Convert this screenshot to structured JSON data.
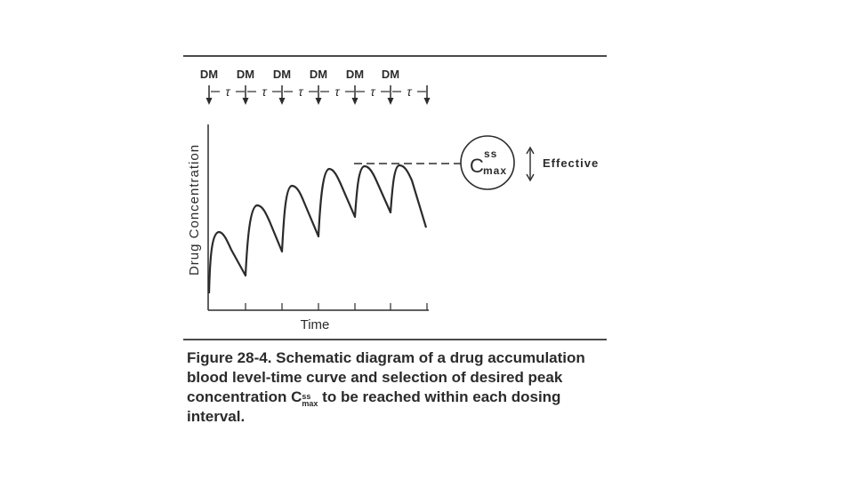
{
  "figure": {
    "dose_label": "DM",
    "dose_count": 6,
    "interval_symbol": "τ",
    "y_axis_label": "Drug Concentration",
    "x_axis_label": "Time",
    "circle": {
      "main": "C",
      "superscript": "ss",
      "subscript": "max"
    },
    "range_label": "Effective"
  },
  "caption": {
    "number": "Figure 28-4.",
    "text_before": "Schematic diagram of a drug accumulation blood level-time curve and selection of desired peak concentration",
    "symbol": "C",
    "symbol_sup": "ss",
    "symbol_sub": "max",
    "text_after": "to be reached within each dosing interval."
  },
  "colors": {
    "ink": "#2b2b2b",
    "rule": "#4a4a4a",
    "background": "#ffffff"
  }
}
